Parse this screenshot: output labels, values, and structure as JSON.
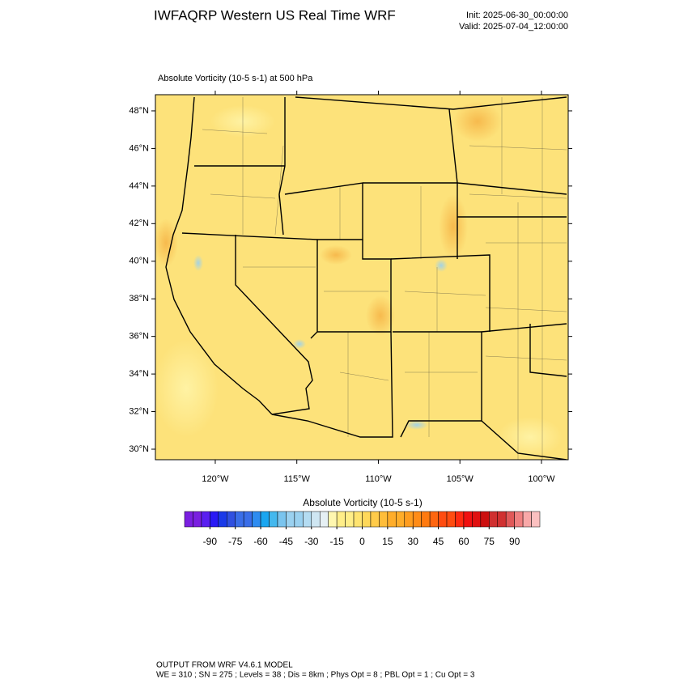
{
  "header": {
    "title": "IWFAQRP Western US Real Time WRF",
    "init": "Init: 2025-06-30_00:00:00",
    "valid": "Valid: 2025-07-04_12:00:00"
  },
  "map": {
    "field_label": "Absolute Vorticity   (10-5 s-1)    at   500 hPa",
    "latlim": [
      29.44,
      48.86
    ],
    "lonlim": [
      -123.67,
      -98.36
    ],
    "lat_ticks": [
      {
        "value": 30,
        "label": "30°N"
      },
      {
        "value": 32,
        "label": "32°N"
      },
      {
        "value": 34,
        "label": "34°N"
      },
      {
        "value": 36,
        "label": "36°N"
      },
      {
        "value": 38,
        "label": "38°N"
      },
      {
        "value": 40,
        "label": "40°N"
      },
      {
        "value": 42,
        "label": "42°N"
      },
      {
        "value": 44,
        "label": "44°N"
      },
      {
        "value": 46,
        "label": "46°N"
      },
      {
        "value": 48,
        "label": "48°N"
      }
    ],
    "lon_ticks": [
      {
        "value": -120,
        "label": "120°W"
      },
      {
        "value": -115,
        "label": "115°W"
      },
      {
        "value": -110,
        "label": "110°W"
      },
      {
        "value": -105,
        "label": "105°W"
      },
      {
        "value": -100,
        "label": "100°W"
      }
    ]
  },
  "colorbar": {
    "title": "Absolute Vorticity  (10-5 s-1)",
    "lim": [
      -105,
      105
    ],
    "step": 5,
    "ticks": [
      -90,
      -75,
      -60,
      -45,
      -30,
      -15,
      0,
      15,
      30,
      45,
      60,
      75,
      90
    ]
  },
  "footer": {
    "line1": "OUTPUT FROM WRF V4.6.1 MODEL",
    "line2": "WE = 310 ; SN = 275 ; Levels = 38 ; Dis = 8km ; Phys Opt = 8 ; PBL Opt = 1 ; Cu Opt = 3"
  }
}
